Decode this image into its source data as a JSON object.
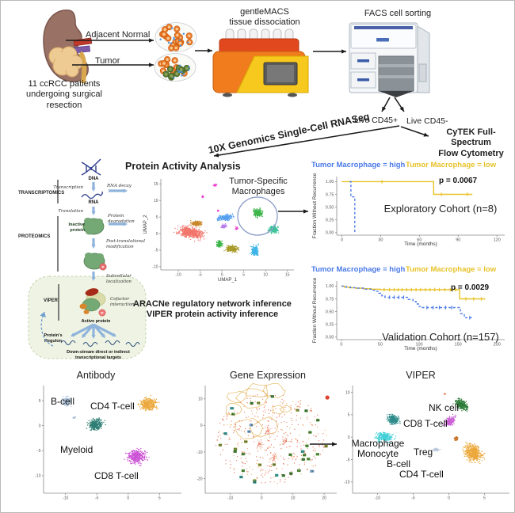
{
  "top": {
    "patients": "11 ccRCC patients\nundergoing surgical\nresection",
    "adjacent_normal": "Adjacent Normal",
    "tumor": "Tumor",
    "gentlemacs": "gentleMACS\ntissue dissociation",
    "facs": "FACS cell sorting",
    "live_cd45_pos": "Live CD45+",
    "live_cd45_neg": "Live CD45-",
    "tenx": "10X Genomics Single-Cell RNASeq",
    "cytek": "CyTEK Full-Spectrum\nFlow Cytometry"
  },
  "pathway": {
    "transcriptomics": "TRANSCRIPTOMICS",
    "proteomics": "PROTEOMICS",
    "viper": "VIPER",
    "dna": "DNA",
    "rna": "RNA",
    "transcription": "Transcription",
    "rna_decay": "RNA decay",
    "translation": "Translation",
    "protein_degradation_l1": "Protein",
    "protein_degradation_l2": "degradation",
    "inactive_l1": "Inactive",
    "inactive_l2": "protein",
    "ptm_l1": "Post-translational",
    "ptm_l2": "modification",
    "subcellular_l1": "Subcellular",
    "subcellular_l2": "localization",
    "cofactor_l1": "Cofactor",
    "cofactor_l2": "interaction",
    "active_protein": "Active protein",
    "regulon_l1": "Protein's",
    "regulon_l2": "Regulon",
    "downstream_l1": "Down-stream direct or indirect",
    "downstream_l2": "transcriptional targets",
    "p_label": "P"
  },
  "protein_activity": {
    "title": "Protein Activity Analysis",
    "annotation": "Tumor-Specific\nMacrophages",
    "caption": "ARACNe regulatory network inference\nVIPER protein activity inference"
  },
  "survival": {
    "legend_high": "Tumor Macrophage = high",
    "legend_low": "Tumor Macrophage = low",
    "legend_high_color": "#4A79E8",
    "legend_low_color": "#E8C229",
    "exploratory_p": "p = 0.0067",
    "exploratory_label": "Exploratory Cohort (n=8)",
    "validation_p": "p = 0.0029",
    "validation_label": "Validation Cohort (n=157)"
  },
  "bottom": {
    "antibody_title": "Antibody",
    "gene_expression_title": "Gene Expression",
    "viper_title": "VIPER",
    "ab_b_cell": "B-cell",
    "ab_cd4": "CD4 T-cell",
    "ab_myeloid": "Myeloid",
    "ab_cd8": "CD8 T-cell",
    "vp_nk": "NK cell",
    "vp_cd8": "CD8 T-cell",
    "vp_macro": "Macrophage\nMonocyte",
    "vp_treg": "Treg",
    "vp_b": "B-cell",
    "vp_cd4": "CD4 T-cell"
  },
  "chart_data": {
    "umap_protein_activity": {
      "type": "scatter",
      "xlabel": "UMAP_1",
      "ylabel": "UMAP_2",
      "xlim": [
        -14,
        16.5
      ],
      "ylim": [
        -11,
        16.5
      ],
      "xticks": [
        -10,
        -5,
        0,
        5,
        10,
        15
      ],
      "yticks": [
        -10,
        -5,
        0,
        5,
        10,
        15
      ],
      "clusters": [
        {
          "name": "salmon-myeloid",
          "color": "#F2766C",
          "cx": -7.2,
          "cy": 0.3,
          "rx": 5.4,
          "ry": 3.0,
          "rot": -18,
          "n": 560
        },
        {
          "name": "goldenrod",
          "color": "#C9872B",
          "cx": -5.8,
          "cy": 3.0,
          "rx": 2.3,
          "ry": 1.4,
          "rot": -10,
          "n": 170
        },
        {
          "name": "blue",
          "color": "#57A0EE",
          "cx": 0.8,
          "cy": 4.8,
          "rx": 3.0,
          "ry": 1.6,
          "rot": 8,
          "n": 240
        },
        {
          "name": "violet",
          "color": "#B57BEE",
          "cx": 0.4,
          "cy": 2.2,
          "rx": 1.1,
          "ry": 1.1,
          "rot": 0,
          "n": 70
        },
        {
          "name": "magenta-1",
          "color": "#EE3FD0",
          "cx": -1.5,
          "cy": 14.6,
          "rx": 0.9,
          "ry": 0.6,
          "rot": 0,
          "n": 20
        },
        {
          "name": "magenta-2",
          "color": "#EE3FD0",
          "cx": -4.4,
          "cy": 11.2,
          "rx": 0.4,
          "ry": 0.8,
          "rot": 0,
          "n": 12
        },
        {
          "name": "magenta-3",
          "color": "#EE3FD0",
          "cx": -0.9,
          "cy": 6.9,
          "rx": 0.5,
          "ry": 0.5,
          "rot": 0,
          "n": 10
        },
        {
          "name": "magenta-4",
          "color": "#EE3FD0",
          "cx": 3.3,
          "cy": 1.6,
          "rx": 0.7,
          "ry": 1.1,
          "rot": 0,
          "n": 16
        },
        {
          "name": "green-center",
          "color": "#3DB54A",
          "cx": -0.6,
          "cy": -3.2,
          "rx": 1.3,
          "ry": 1.8,
          "rot": 0,
          "n": 130
        },
        {
          "name": "olive",
          "color": "#A89B28",
          "cx": 2.2,
          "cy": -4.6,
          "rx": 2.5,
          "ry": 1.8,
          "rot": -15,
          "n": 230
        },
        {
          "name": "tumor-macrophage",
          "color": "#3DB54A",
          "cx": 8.2,
          "cy": 6.2,
          "rx": 1.8,
          "ry": 2.3,
          "rot": 0,
          "n": 210
        },
        {
          "name": "seafoam",
          "color": "#3EC39B",
          "cx": 11.8,
          "cy": 1.2,
          "rx": 2.3,
          "ry": 2.1,
          "rot": -20,
          "n": 180
        },
        {
          "name": "cyan",
          "color": "#3FB5E8",
          "cx": 7.6,
          "cy": -5.2,
          "rx": 1.6,
          "ry": 2.9,
          "rot": 0,
          "n": 210
        }
      ]
    },
    "km_exploratory": {
      "type": "line",
      "xlabel": "Time (months)",
      "ylabel": "Fraction Without Recurrence",
      "xlim": [
        -4,
        126
      ],
      "ylim": [
        -0.05,
        1.1
      ],
      "xticks": [
        0,
        30,
        60,
        90,
        120
      ],
      "xtick_labels": [
        "0",
        "30",
        "60",
        "90",
        "120"
      ],
      "yticks": [
        0,
        0.25,
        0.5,
        0.75,
        1
      ],
      "ytick_labels": [
        "0.00",
        "0.25",
        "0.50",
        "0.75",
        "1.00"
      ],
      "series": [
        {
          "name": "Tumor Macrophage = low",
          "color": "#E8C229",
          "dash": false,
          "points": [
            [
              0,
              1.0
            ],
            [
              71,
              1.0
            ],
            [
              71,
              0.75
            ],
            [
              101,
              0.75
            ]
          ],
          "censors": [
            [
              31,
              1.0
            ],
            [
              77,
              0.75
            ],
            [
              97,
              0.75
            ]
          ]
        },
        {
          "name": "Tumor Macrophage = high",
          "color": "#4A79E8",
          "dash": true,
          "points": [
            [
              6,
              1.0
            ],
            [
              7,
              1.0
            ],
            [
              7,
              0.7
            ],
            [
              10,
              0.7
            ],
            [
              10,
              0.0
            ]
          ],
          "censors": []
        }
      ]
    },
    "km_validation": {
      "type": "line",
      "xlabel": "Time (months)",
      "ylabel": "Fraction Without Recurrence",
      "xlim": [
        -6,
        210
      ],
      "ylim": [
        -0.05,
        1.1
      ],
      "xticks": [
        0,
        50,
        100,
        150,
        200
      ],
      "xtick_labels": [
        "0",
        "50",
        "100",
        "150",
        "200"
      ],
      "yticks": [
        0,
        0.25,
        0.5,
        0.75,
        1
      ],
      "ytick_labels": [
        "0.00",
        "0.25",
        "0.50",
        "0.75",
        "1.00"
      ],
      "series": [
        {
          "name": "Tumor Macrophage = low",
          "color": "#E8C229",
          "dash": false,
          "points": [
            [
              0,
              1.0
            ],
            [
              4,
              1.0
            ],
            [
              4,
              0.98
            ],
            [
              10,
              0.98
            ],
            [
              10,
              0.97
            ],
            [
              18,
              0.97
            ],
            [
              18,
              0.96
            ],
            [
              28,
              0.96
            ],
            [
              28,
              0.95
            ],
            [
              38,
              0.95
            ],
            [
              38,
              0.94
            ],
            [
              50,
              0.94
            ],
            [
              50,
              0.93
            ],
            [
              152,
              0.93
            ],
            [
              152,
              0.75
            ],
            [
              185,
              0.75
            ]
          ],
          "censors": [
            [
              55,
              0.93
            ],
            [
              62,
              0.93
            ],
            [
              68,
              0.93
            ],
            [
              73,
              0.93
            ],
            [
              78,
              0.93
            ],
            [
              84,
              0.93
            ],
            [
              90,
              0.93
            ],
            [
              96,
              0.93
            ],
            [
              102,
              0.93
            ],
            [
              108,
              0.93
            ],
            [
              114,
              0.93
            ],
            [
              120,
              0.93
            ],
            [
              126,
              0.93
            ],
            [
              133,
              0.93
            ],
            [
              140,
              0.93
            ],
            [
              147,
              0.93
            ],
            [
              160,
              0.75
            ],
            [
              170,
              0.75
            ],
            [
              180,
              0.75
            ]
          ]
        },
        {
          "name": "Tumor Macrophage = high",
          "color": "#4A79E8",
          "dash": true,
          "points": [
            [
              0,
              1.0
            ],
            [
              6,
              1.0
            ],
            [
              6,
              0.98
            ],
            [
              12,
              0.98
            ],
            [
              12,
              0.97
            ],
            [
              20,
              0.97
            ],
            [
              20,
              0.96
            ],
            [
              30,
              0.96
            ],
            [
              30,
              0.94
            ],
            [
              38,
              0.94
            ],
            [
              38,
              0.92
            ],
            [
              44,
              0.92
            ],
            [
              44,
              0.9
            ],
            [
              48,
              0.9
            ],
            [
              48,
              0.86
            ],
            [
              52,
              0.86
            ],
            [
              52,
              0.81
            ],
            [
              56,
              0.81
            ],
            [
              56,
              0.78
            ],
            [
              86,
              0.78
            ],
            [
              86,
              0.74
            ],
            [
              92,
              0.74
            ],
            [
              92,
              0.7
            ],
            [
              96,
              0.7
            ],
            [
              96,
              0.65
            ],
            [
              100,
              0.65
            ],
            [
              100,
              0.6
            ],
            [
              104,
              0.6
            ],
            [
              104,
              0.58
            ],
            [
              153,
              0.58
            ],
            [
              153,
              0.46
            ],
            [
              158,
              0.46
            ],
            [
              158,
              0.38
            ],
            [
              170,
              0.38
            ]
          ],
          "censors": [
            [
              62,
              0.78
            ],
            [
              68,
              0.78
            ],
            [
              74,
              0.78
            ],
            [
              80,
              0.78
            ],
            [
              110,
              0.58
            ],
            [
              118,
              0.58
            ],
            [
              126,
              0.58
            ],
            [
              134,
              0.58
            ],
            [
              142,
              0.58
            ],
            [
              165,
              0.38
            ]
          ]
        }
      ]
    },
    "umap_antibody": {
      "type": "scatter",
      "xlim": [
        -13.5,
        8.5
      ],
      "ylim": [
        -13.5,
        8
      ],
      "xticks": [
        -10,
        -5,
        0,
        5
      ],
      "yticks": [
        -10,
        -5,
        0,
        5
      ],
      "clusters": [
        {
          "name": "b-cell",
          "color": "#A9BED8",
          "cx": -9.8,
          "cy": 4.8,
          "rx": 1.4,
          "ry": 1.6,
          "rot": 0,
          "n": 130
        },
        {
          "name": "b-cell-frag",
          "color": "#A9BED8",
          "cx": -8.6,
          "cy": 1.6,
          "rx": 0.5,
          "ry": 0.4,
          "rot": 0,
          "n": 14
        },
        {
          "name": "cd4-t-cell",
          "color": "#EBA83C",
          "cx": 3.2,
          "cy": 4.3,
          "rx": 2.6,
          "ry": 2.3,
          "rot": 0,
          "n": 330
        },
        {
          "name": "myeloid",
          "color": "#2F7E74",
          "cx": -5.2,
          "cy": 0.2,
          "rx": 2.3,
          "ry": 2.0,
          "rot": 25,
          "n": 290
        },
        {
          "name": "cd8-t-cell",
          "color": "#CC52D6",
          "cx": 1.3,
          "cy": -6.2,
          "rx": 2.8,
          "ry": 2.6,
          "rot": 0,
          "n": 360
        }
      ]
    },
    "tsne_gene_expression": {
      "type": "scatter-numbered",
      "xlim": [
        -18,
        24
      ],
      "ylim": [
        -25.5,
        15
      ],
      "xticks": [
        -10,
        0,
        10,
        20
      ],
      "yticks": [
        -20,
        -10,
        0,
        10
      ],
      "cluster_ids": [
        "54",
        "76",
        "102",
        "91",
        "90",
        "78",
        "75",
        "79",
        "70",
        "107",
        "92",
        "99",
        "98",
        "95",
        "61",
        "112",
        "73",
        "74",
        "96",
        "25",
        "58",
        "35",
        "28",
        "17",
        "52",
        "113",
        "66",
        "81",
        "39",
        "44",
        "100",
        "87",
        "63",
        "71",
        "59",
        "48"
      ],
      "square_colors": [
        "#4E9B2E",
        "#4E9B2E",
        "#3A8A30",
        "#2AA8A0",
        "#6FA8DC",
        "#8A9B28"
      ],
      "dot_colors": [
        "#E0532F",
        "#EF8A66",
        "#E8A53C"
      ],
      "contour_color": "#DFA63C",
      "outlier": {
        "x": 21,
        "y": 10.5,
        "color": "#E0432F"
      }
    },
    "umap_viper": {
      "type": "scatter",
      "xlim": [
        -13.5,
        8.5
      ],
      "ylim": [
        -12.5,
        11.5
      ],
      "xticks": [
        -10,
        -5,
        0,
        5
      ],
      "yticks": [
        -10,
        -5,
        0,
        5,
        10
      ],
      "clusters": [
        {
          "name": "nk-cell",
          "color": "#2E7D3B",
          "cx": 1.8,
          "cy": 7.2,
          "rx": 1.4,
          "ry": 2.5,
          "rot": 25,
          "n": 260
        },
        {
          "name": "cd8-t-cell",
          "color": "#CB5FD6",
          "cx": 0.2,
          "cy": 3.6,
          "rx": 1.1,
          "ry": 2.1,
          "rot": -20,
          "n": 170
        },
        {
          "name": "macrophage-teal",
          "color": "#2E8B8B",
          "cx": -7.8,
          "cy": 3.8,
          "rx": 1.6,
          "ry": 2.1,
          "rot": 10,
          "n": 220
        },
        {
          "name": "monocyte-cyan",
          "color": "#45D0D8",
          "cx": -9.0,
          "cy": 0.0,
          "rx": 2.2,
          "ry": 2.0,
          "rot": -15,
          "n": 260
        },
        {
          "name": "treg",
          "color": "#C87830",
          "cx": 1.0,
          "cy": -0.3,
          "rx": 0.5,
          "ry": 0.8,
          "rot": 0,
          "n": 45
        },
        {
          "name": "b-cell",
          "color": "#B9C9DC",
          "cx": -1.8,
          "cy": -2.8,
          "rx": 0.9,
          "ry": 0.5,
          "rot": 0,
          "n": 55
        },
        {
          "name": "cd4-t-cell",
          "color": "#EBA83C",
          "cx": 3.4,
          "cy": -3.5,
          "rx": 2.2,
          "ry": 3.6,
          "rot": 12,
          "n": 470
        },
        {
          "name": "orange-speck",
          "color": "#E06030",
          "cx": -0.6,
          "cy": 9.6,
          "rx": 0.3,
          "ry": 0.3,
          "rot": 0,
          "n": 6
        }
      ]
    }
  }
}
